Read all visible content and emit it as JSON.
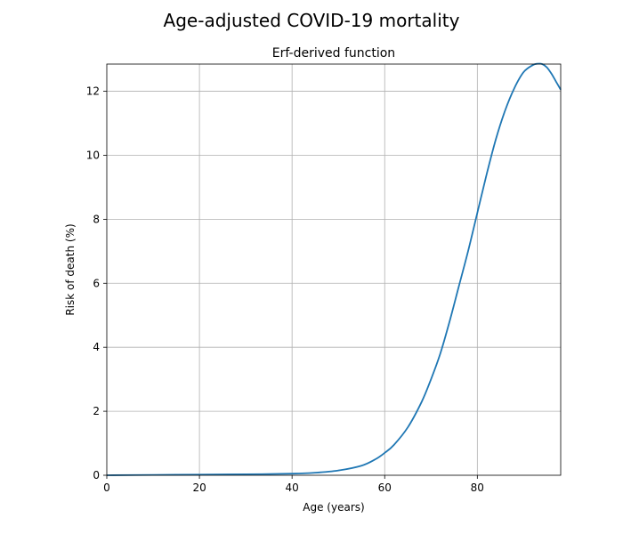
{
  "chart_data": {
    "type": "line",
    "suptitle": "Age-adjusted COVID-19 mortality",
    "title": "Erf-derived function",
    "xlabel": "Age (years)",
    "ylabel": "Risk of death (%)",
    "xlim": [
      0,
      98
    ],
    "ylim": [
      0,
      12.85
    ],
    "xticks": [
      0,
      20,
      40,
      60,
      80
    ],
    "yticks": [
      0,
      2,
      4,
      6,
      8,
      10,
      12
    ],
    "grid": true,
    "series": [
      {
        "color": "#1f77b4",
        "x": [
          0,
          10,
          20,
          30,
          40,
          45,
          50,
          55,
          58,
          60,
          62,
          65,
          68,
          70,
          72,
          74,
          76,
          78,
          80,
          82,
          84,
          86,
          88,
          90,
          92,
          93,
          94,
          95,
          96,
          97,
          98
        ],
        "y": [
          0.0,
          0.01,
          0.02,
          0.03,
          0.05,
          0.08,
          0.15,
          0.3,
          0.5,
          0.7,
          0.95,
          1.5,
          2.3,
          3.0,
          3.8,
          4.8,
          5.9,
          7.0,
          8.2,
          9.4,
          10.5,
          11.4,
          12.1,
          12.6,
          12.82,
          12.86,
          12.85,
          12.75,
          12.55,
          12.3,
          12.05
        ]
      }
    ]
  }
}
